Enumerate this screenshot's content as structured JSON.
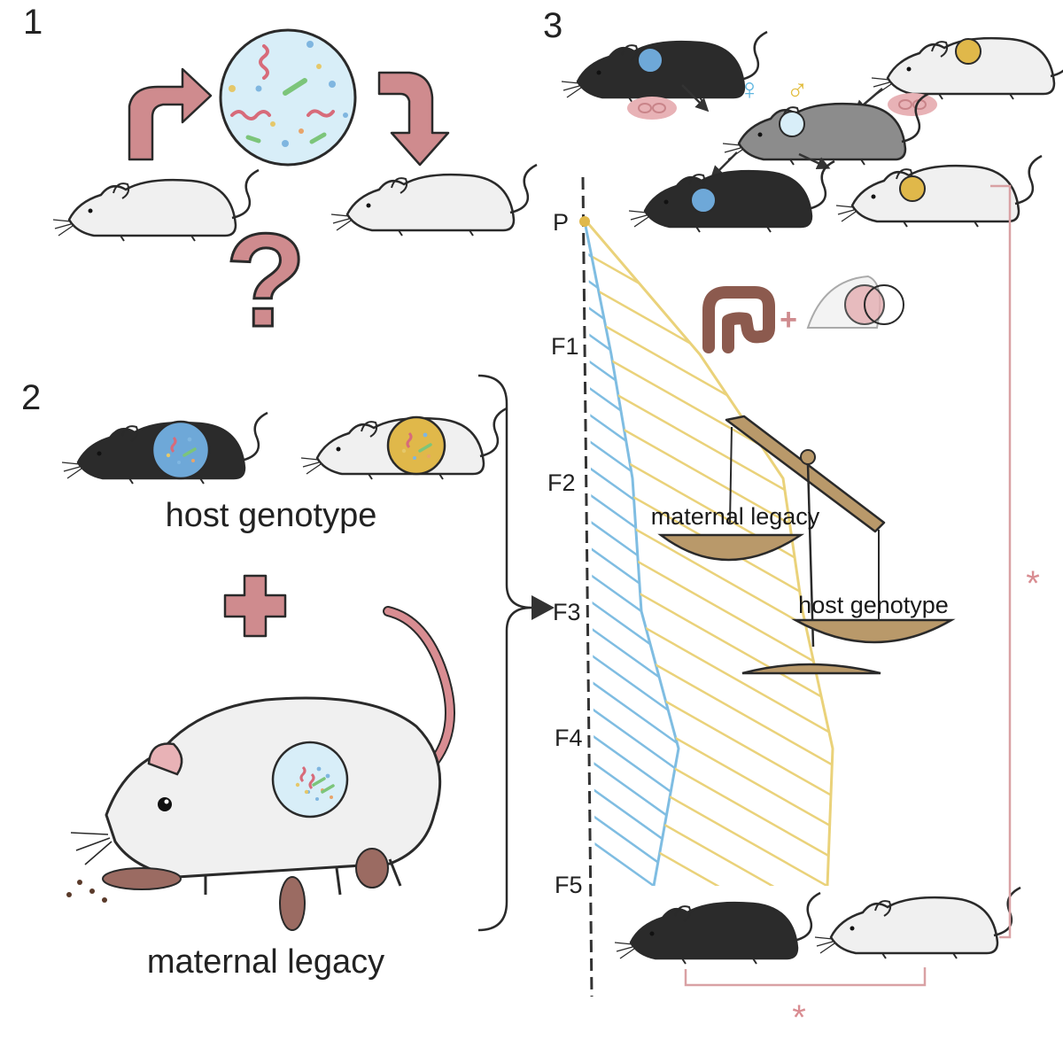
{
  "panels": {
    "p1": {
      "number": "1",
      "question_mark": "?"
    },
    "p2": {
      "number": "2",
      "host_genotype_label": "host genotype",
      "plus": "+",
      "maternal_legacy_label": "maternal legacy"
    },
    "p3": {
      "number": "3",
      "female_symbol": "♀",
      "male_symbol": "♂",
      "generations": [
        "P",
        "F1",
        "F2",
        "F3",
        "F4",
        "F5"
      ],
      "plus": "+",
      "scale_left_label": "maternal legacy",
      "scale_right_label": "host genotype",
      "significance_marker": "*"
    }
  },
  "colors": {
    "arrow_pink": "#cf8b8e",
    "microbiome_blue": "#d8eef8",
    "blue_line": "#7fbde2",
    "yellow_line": "#ead27a",
    "scale_bronze": "#b9996a",
    "mouse_black": "#2b2b2b",
    "mouse_white": "#f0f0f0",
    "mouse_grey": "#8c8c8c"
  }
}
